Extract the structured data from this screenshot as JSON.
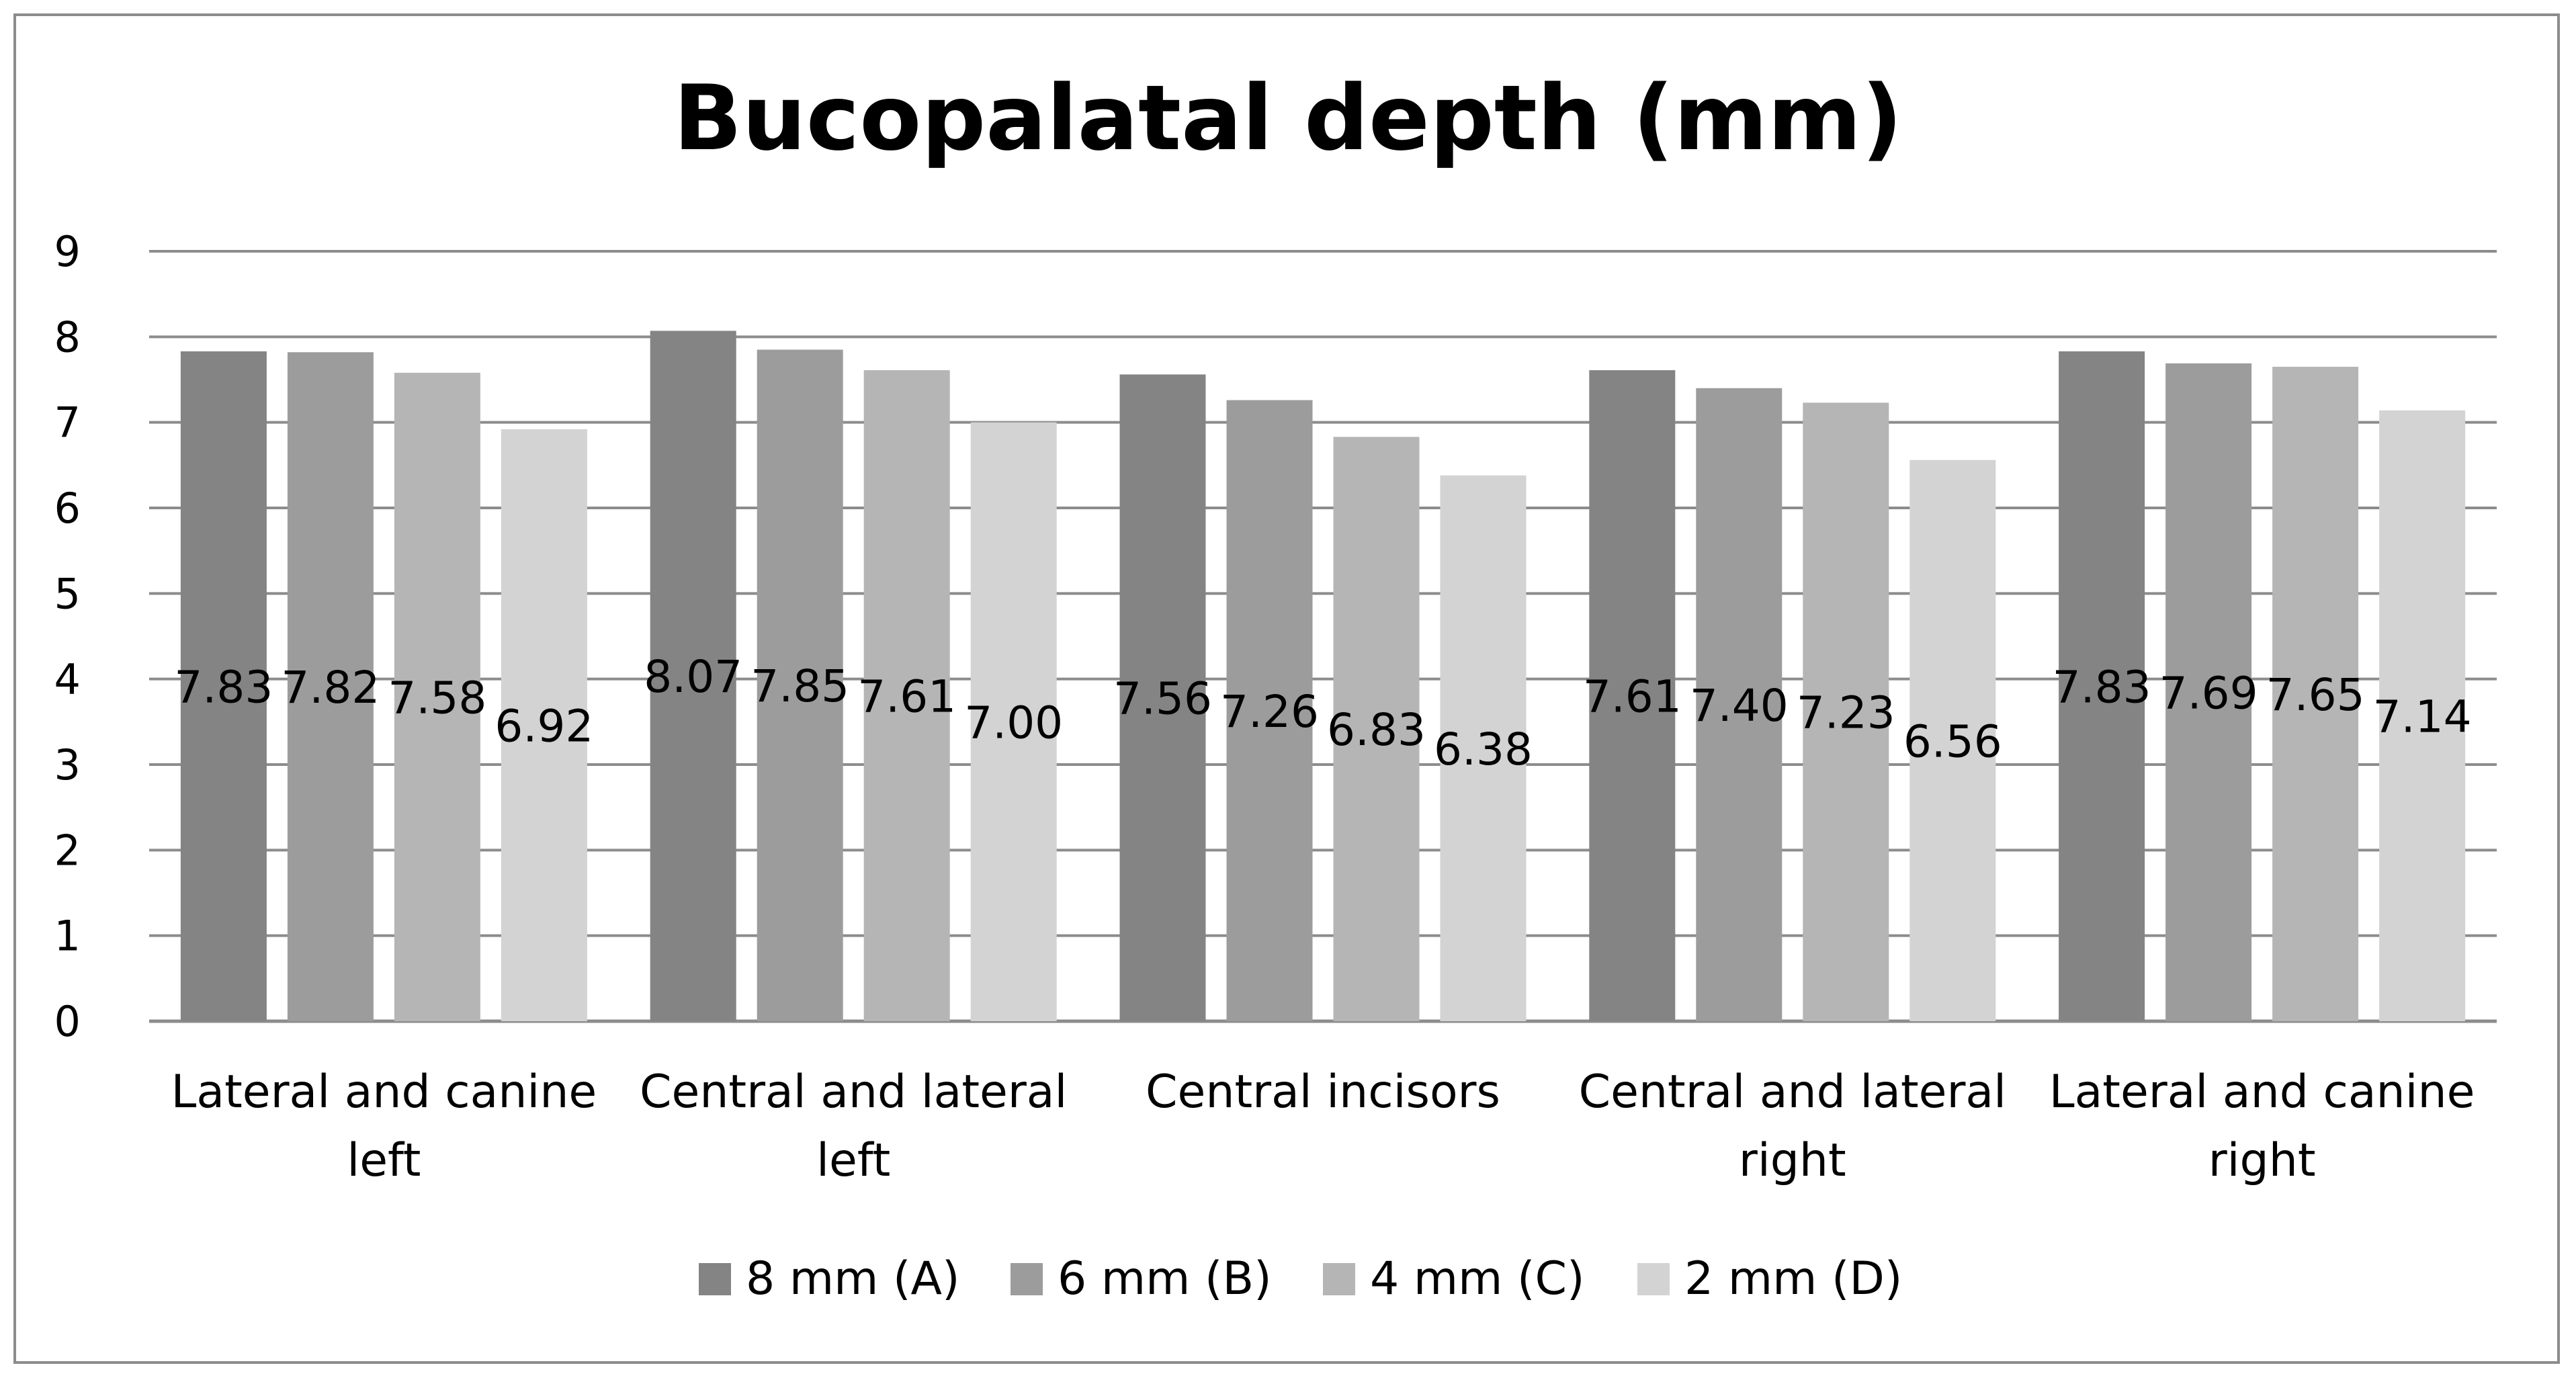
{
  "chart_data": {
    "type": "bar",
    "title": "Bucopalatal depth (mm)",
    "xlabel": "",
    "ylabel": "",
    "ylim": [
      0,
      9
    ],
    "yticks": [
      "0",
      "1",
      "2",
      "3",
      "4",
      "5",
      "6",
      "7",
      "8",
      "9"
    ],
    "grid": true,
    "legend_position": "bottom",
    "categories": [
      [
        "Lateral and canine",
        "left"
      ],
      [
        "Central and lateral",
        "left"
      ],
      [
        "Central incisors"
      ],
      [
        "Central and lateral",
        "right"
      ],
      [
        "Lateral and canine",
        "right"
      ]
    ],
    "series": [
      {
        "name": "8 mm (A)",
        "color": "#848484",
        "values": [
          7.83,
          8.07,
          7.56,
          7.61,
          7.83
        ],
        "labels": [
          "7.83",
          "8.07",
          "7.56",
          "7.61",
          "7.83"
        ]
      },
      {
        "name": "6 mm (B)",
        "color": "#9c9c9c",
        "values": [
          7.82,
          7.85,
          7.26,
          7.4,
          7.69
        ],
        "labels": [
          "7.82",
          "7.85",
          "7.26",
          "7.40",
          "7.69"
        ]
      },
      {
        "name": "4 mm (C)",
        "color": "#b5b5b5",
        "values": [
          7.58,
          7.61,
          6.83,
          7.23,
          7.65
        ],
        "labels": [
          "7.58",
          "7.61",
          "6.83",
          "7.23",
          "7.65"
        ]
      },
      {
        "name": "2 mm (D)",
        "color": "#d3d3d3",
        "values": [
          6.92,
          7.0,
          6.38,
          6.56,
          7.14
        ],
        "labels": [
          "6.92",
          "7.00",
          "6.38",
          "6.56",
          "7.14"
        ]
      }
    ],
    "colors": {
      "gridline": "#8c8c8c",
      "frame": "#8c8c8c"
    }
  }
}
